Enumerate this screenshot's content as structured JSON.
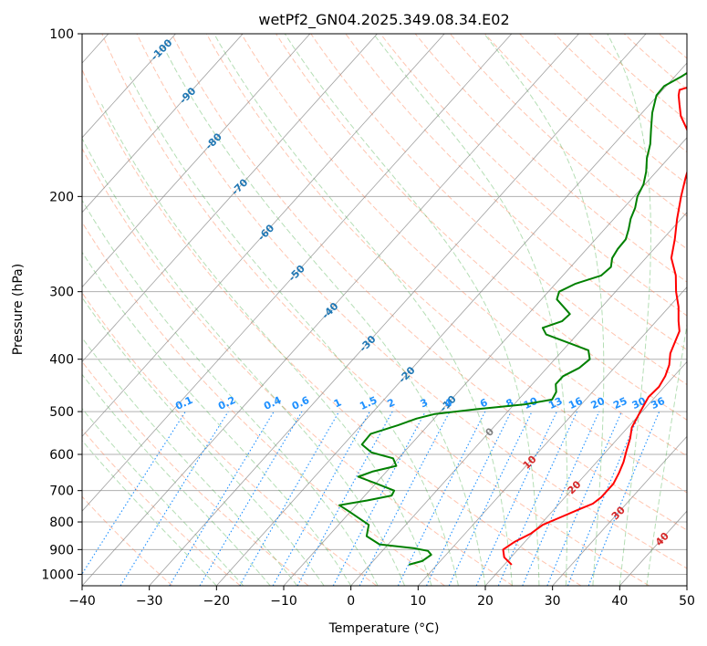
{
  "chart_data": {
    "type": "line",
    "title": "wetPf2_GN04.2025.349.08.34.E02",
    "xlabel": "Temperature (°C)",
    "ylabel": "Pressure (hPa)",
    "xlim": [
      -40,
      50
    ],
    "ylim": [
      1050,
      100
    ],
    "y_scale": "log",
    "grid": true,
    "x_ticks": [
      -40,
      -30,
      -20,
      -10,
      0,
      10,
      20,
      30,
      40,
      50
    ],
    "y_ticks": [
      1000,
      900,
      800,
      700,
      600,
      500,
      400,
      300,
      200,
      100
    ],
    "colors": {
      "temperature": "#ff0000",
      "dewpoint": "#008000",
      "isotherm": "#808080",
      "dry_adiabat": "#ff7f50",
      "moist_adiabat": "#2ca02c",
      "mixing_ratio": "#1e90ff",
      "grid": "#b0b0b0"
    },
    "isotherm_labels": [
      {
        "text": "-100",
        "t": -100,
        "p": 107,
        "color": "#1f77b4"
      },
      {
        "text": "-90",
        "t": -90,
        "p": 130,
        "color": "#1f77b4"
      },
      {
        "text": "-80",
        "t": -80,
        "p": 158,
        "color": "#1f77b4"
      },
      {
        "text": "-70",
        "t": -70,
        "p": 192,
        "color": "#1f77b4"
      },
      {
        "text": "-60",
        "t": -60,
        "p": 233,
        "color": "#1f77b4"
      },
      {
        "text": "-50",
        "t": -50,
        "p": 277,
        "color": "#1f77b4"
      },
      {
        "text": "-40",
        "t": -40,
        "p": 325,
        "color": "#1f77b4"
      },
      {
        "text": "-30",
        "t": -30,
        "p": 374,
        "color": "#1f77b4"
      },
      {
        "text": "-20",
        "t": -20,
        "p": 427,
        "color": "#1f77b4"
      },
      {
        "text": "-10",
        "t": -10,
        "p": 483,
        "color": "#1f77b4"
      },
      {
        "text": "0",
        "t": 0,
        "p": 545,
        "color": "#808080"
      },
      {
        "text": "10",
        "t": 10,
        "p": 620,
        "color": "#d62728"
      },
      {
        "text": "20",
        "t": 20,
        "p": 690,
        "color": "#d62728"
      },
      {
        "text": "30",
        "t": 30,
        "p": 770,
        "color": "#d62728"
      },
      {
        "text": "40",
        "t": 40,
        "p": 860,
        "color": "#d62728"
      }
    ],
    "mixing_ratio_labels": [
      "0.1",
      "0.2",
      "0.4",
      "0.6",
      "1",
      "1.5",
      "2",
      "3",
      "4",
      "6",
      "8",
      "10",
      "13",
      "16",
      "20",
      "25",
      "30",
      "36"
    ],
    "mixing_ratio_values": [
      0.1,
      0.2,
      0.4,
      0.6,
      1,
      1.5,
      2,
      3,
      4,
      6,
      8,
      10,
      13,
      16,
      20,
      25,
      30,
      36
    ],
    "series": [
      {
        "name": "temperature",
        "points": [
          [
            21.1,
            960
          ],
          [
            19.0,
            930
          ],
          [
            17.8,
            900
          ],
          [
            18.5,
            870
          ],
          [
            19.8,
            840
          ],
          [
            20.4,
            810
          ],
          [
            22.3,
            780
          ],
          [
            23.6,
            760
          ],
          [
            25.0,
            740
          ],
          [
            25.4,
            720
          ],
          [
            25.4,
            680
          ],
          [
            24.8,
            650
          ],
          [
            24.0,
            620
          ],
          [
            22.9,
            590
          ],
          [
            21.8,
            560
          ],
          [
            20.6,
            535
          ],
          [
            20.0,
            510
          ],
          [
            19.5,
            490
          ],
          [
            19.0,
            470
          ],
          [
            19.2,
            450
          ],
          [
            18.7,
            430
          ],
          [
            17.8,
            410
          ],
          [
            16.4,
            390
          ],
          [
            15.5,
            370
          ],
          [
            14.8,
            355
          ],
          [
            13.3,
            340
          ],
          [
            11.4,
            320
          ],
          [
            9.0,
            300
          ],
          [
            6.8,
            280
          ],
          [
            3.8,
            260
          ],
          [
            1.8,
            240
          ],
          [
            -0.6,
            220
          ],
          [
            -3.0,
            200
          ],
          [
            -4.8,
            185
          ],
          [
            -6.6,
            170
          ],
          [
            -8.2,
            160
          ],
          [
            -11.2,
            150
          ],
          [
            -13.8,
            142
          ],
          [
            -15.6,
            135
          ],
          [
            -16.9,
            130
          ],
          [
            -17.5,
            127
          ],
          [
            -16.2,
            125
          ],
          [
            -13.0,
            122
          ],
          [
            -10.5,
            118
          ],
          [
            -8.5,
            112
          ],
          [
            -7.5,
            106
          ],
          [
            -7.5,
            100
          ]
        ]
      },
      {
        "name": "dewpoint",
        "points": [
          [
            5.8,
            960
          ],
          [
            7.3,
            945
          ],
          [
            7.8,
            920
          ],
          [
            6.8,
            905
          ],
          [
            4.4,
            895
          ],
          [
            -1.3,
            880
          ],
          [
            -4.3,
            850
          ],
          [
            -5.5,
            810
          ],
          [
            -10.8,
            760
          ],
          [
            -12.5,
            745
          ],
          [
            -9.0,
            730
          ],
          [
            -6.0,
            715
          ],
          [
            -6.3,
            700
          ],
          [
            -9.8,
            680
          ],
          [
            -13.5,
            660
          ],
          [
            -12.0,
            645
          ],
          [
            -9.3,
            630
          ],
          [
            -10.8,
            610
          ],
          [
            -14.8,
            595
          ],
          [
            -17.3,
            575
          ],
          [
            -17.4,
            550
          ],
          [
            -14.5,
            530
          ],
          [
            -12.6,
            515
          ],
          [
            -10.5,
            505
          ],
          [
            -5.0,
            495
          ],
          [
            1.5,
            485
          ],
          [
            5.0,
            475
          ],
          [
            4.6,
            460
          ],
          [
            3.5,
            445
          ],
          [
            3.5,
            430
          ],
          [
            4.8,
            415
          ],
          [
            5.2,
            400
          ],
          [
            3.8,
            385
          ],
          [
            0.5,
            375
          ],
          [
            -4.6,
            360
          ],
          [
            -6.0,
            350
          ],
          [
            -4.0,
            340
          ],
          [
            -3.8,
            330
          ],
          [
            -5.7,
            320
          ],
          [
            -7.7,
            310
          ],
          [
            -8.4,
            300
          ],
          [
            -7.0,
            290
          ],
          [
            -4.3,
            280
          ],
          [
            -4.0,
            270
          ],
          [
            -5.0,
            260
          ],
          [
            -5.4,
            250
          ],
          [
            -5.5,
            240
          ],
          [
            -6.4,
            230
          ],
          [
            -7.5,
            220
          ],
          [
            -8.3,
            210
          ],
          [
            -9.5,
            200
          ],
          [
            -10.2,
            190
          ],
          [
            -11.5,
            180
          ],
          [
            -13.2,
            170
          ],
          [
            -14.6,
            160
          ],
          [
            -16.5,
            150
          ],
          [
            -18.5,
            140
          ],
          [
            -20.2,
            130
          ],
          [
            -20.3,
            125
          ],
          [
            -19.0,
            120
          ],
          [
            -18.0,
            115
          ],
          [
            -18.4,
            110
          ],
          [
            -19.5,
            105
          ],
          [
            -20.0,
            100
          ]
        ]
      }
    ]
  }
}
